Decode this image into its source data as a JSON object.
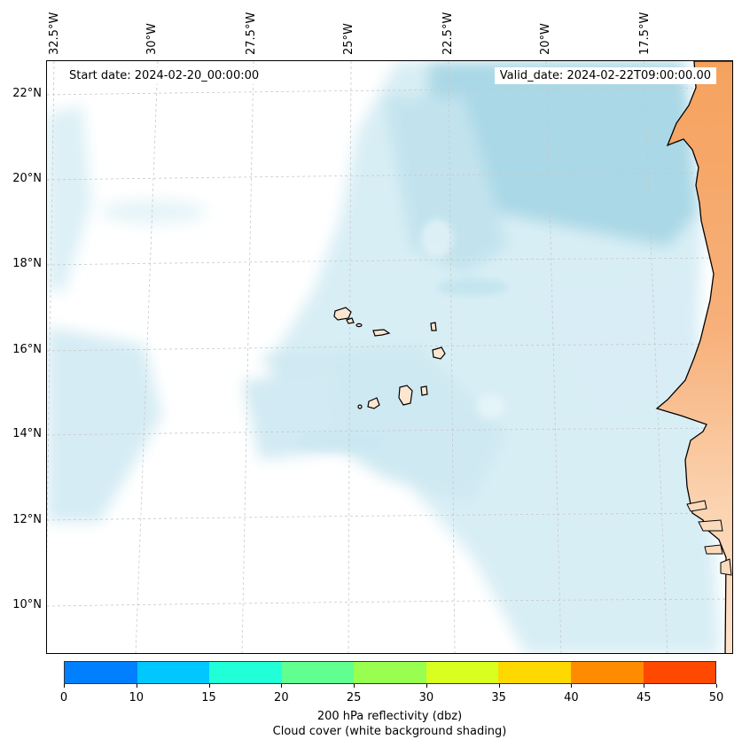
{
  "header": {
    "start_date": "Start date: 2024-02-20_00:00:00",
    "valid_date": "Valid_date: 2024-02-22T09:00:00.00"
  },
  "longitude_labels": [
    "32.5°W",
    "30°W",
    "27.5°W",
    "25°W",
    "22.5°W",
    "20°W",
    "17.5°W"
  ],
  "latitude_labels": [
    "22°N",
    "20°N",
    "18°N",
    "16°N",
    "14°N",
    "12°N",
    "10°N"
  ],
  "colorbar": {
    "ticks": [
      "0",
      "10",
      "15",
      "20",
      "25",
      "30",
      "35",
      "40",
      "45",
      "50"
    ],
    "colors": [
      "#0080ff",
      "#00c8ff",
      "#20ffd8",
      "#60ff90",
      "#98ff50",
      "#d8ff20",
      "#ffd800",
      "#ff8c00",
      "#ff4800"
    ],
    "label_line1": "200 hPa reflectivity (dbz)",
    "label_line2": "Cloud cover (white background shading)"
  },
  "colors": {
    "land": "#f5a25e",
    "island_land": "#fde6d0",
    "cloud_shade": "#a8d8e6"
  }
}
